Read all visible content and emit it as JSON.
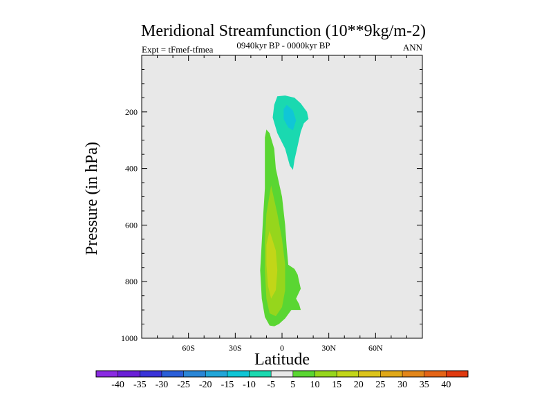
{
  "chart_data": {
    "type": "heatmap",
    "title": "Meridional Streamfunction (10**9kg/m-2)",
    "subtitle_left": "Expt = tFmef-tfmea",
    "subtitle_center": "0940kyr BP - 0000kyr BP",
    "subtitle_right": "ANN",
    "xlabel": "Latitude",
    "ylabel": "Pressure (in hPa)",
    "xlim": [
      -90,
      90
    ],
    "ylim": [
      1000,
      0
    ],
    "x_ticks": [
      -60,
      -30,
      0,
      30,
      60
    ],
    "x_tick_labels": [
      "60S",
      "30S",
      "0",
      "30N",
      "60N"
    ],
    "y_ticks": [
      200,
      400,
      600,
      800,
      1000
    ],
    "y_tick_labels": [
      "200",
      "400",
      "600",
      "800",
      "1000"
    ],
    "colorbar_labels": [
      "-40",
      "-35",
      "-30",
      "-25",
      "-20",
      "-15",
      "-10",
      "-5",
      "5",
      "10",
      "15",
      "20",
      "25",
      "30",
      "35",
      "40"
    ],
    "colorbar_colors": [
      "#8a2be2",
      "#6a1fd6",
      "#3a33d8",
      "#2a5ed8",
      "#2a86d6",
      "#22a6d8",
      "#10c6d6",
      "#1ad9b0",
      "#e8e8e8",
      "#5ad632",
      "#96d61c",
      "#c2d618",
      "#dcc41a",
      "#e0a818",
      "#e2861a",
      "#e46416",
      "#e03a10"
    ],
    "contours": [
      {
        "name": "neg-outer",
        "level": -10,
        "color": "#1ad9b0",
        "points": [
          [
            -3,
            145
          ],
          [
            2,
            142
          ],
          [
            8,
            150
          ],
          [
            12,
            170
          ],
          [
            16,
            200
          ],
          [
            17,
            225
          ],
          [
            14,
            240
          ],
          [
            12,
            270
          ],
          [
            10,
            320
          ],
          [
            8,
            370
          ],
          [
            7,
            405
          ],
          [
            5,
            390
          ],
          [
            2,
            330
          ],
          [
            -3,
            275
          ],
          [
            -6,
            220
          ],
          [
            -5,
            175
          ]
        ]
      },
      {
        "name": "neg-inner",
        "level": -15,
        "color": "#10c6d6",
        "points": [
          [
            3,
            175
          ],
          [
            7,
            195
          ],
          [
            9,
            230
          ],
          [
            7,
            265
          ],
          [
            4,
            255
          ],
          [
            1,
            225
          ],
          [
            1,
            190
          ]
        ]
      },
      {
        "name": "pos-outer",
        "level": 5,
        "color": "#5ad632",
        "points": [
          [
            -10,
            262
          ],
          [
            -8,
            275
          ],
          [
            -5,
            330
          ],
          [
            -4,
            400
          ],
          [
            0,
            500
          ],
          [
            2,
            600
          ],
          [
            3,
            680
          ],
          [
            4,
            740
          ],
          [
            8,
            755
          ],
          [
            10,
            775
          ],
          [
            11,
            800
          ],
          [
            12,
            825
          ],
          [
            9,
            860
          ],
          [
            11,
            880
          ],
          [
            12,
            900
          ],
          [
            6,
            900
          ],
          [
            2,
            930
          ],
          [
            -2,
            950
          ],
          [
            -5,
            958
          ],
          [
            -8,
            955
          ],
          [
            -11,
            925
          ],
          [
            -13,
            860
          ],
          [
            -14,
            760
          ],
          [
            -13,
            660
          ],
          [
            -12,
            560
          ],
          [
            -11,
            470
          ],
          [
            -11,
            360
          ],
          [
            -11,
            290
          ]
        ]
      },
      {
        "name": "pos-mid",
        "level": 10,
        "color": "#96d61c",
        "points": [
          [
            -7,
            460
          ],
          [
            -3,
            560
          ],
          [
            0,
            650
          ],
          [
            2,
            740
          ],
          [
            2,
            830
          ],
          [
            0,
            890
          ],
          [
            -4,
            922
          ],
          [
            -8,
            912
          ],
          [
            -10,
            860
          ],
          [
            -11,
            760
          ],
          [
            -11,
            660
          ],
          [
            -10,
            560
          ]
        ]
      },
      {
        "name": "pos-inner",
        "level": 15,
        "color": "#c2d618",
        "points": [
          [
            -8,
            620
          ],
          [
            -4,
            690
          ],
          [
            -3,
            760
          ],
          [
            -4,
            830
          ],
          [
            -7,
            860
          ],
          [
            -9,
            815
          ],
          [
            -10,
            740
          ],
          [
            -10,
            670
          ]
        ]
      }
    ]
  }
}
